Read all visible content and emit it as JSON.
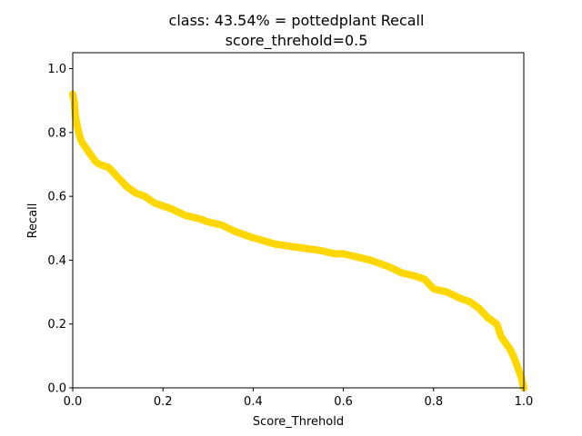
{
  "chart_data": {
    "type": "line",
    "title": "class: 43.54% = pottedplant Recall",
    "subtitle": "score_threhold=0.5",
    "xlabel": "Score_Threhold",
    "ylabel": "Recall",
    "xlim": [
      0.0,
      1.0
    ],
    "ylim": [
      0.0,
      1.05
    ],
    "x_ticks": [
      "0.0",
      "0.2",
      "0.4",
      "0.6",
      "0.8",
      "1.0"
    ],
    "y_ticks": [
      "0.0",
      "0.2",
      "0.4",
      "0.6",
      "0.8",
      "1.0"
    ],
    "grid": false,
    "legend": "none",
    "series": [
      {
        "color": "#ffd700",
        "x": [
          0.0,
          0.003,
          0.006,
          0.01,
          0.015,
          0.02,
          0.03,
          0.04,
          0.05,
          0.06,
          0.08,
          0.1,
          0.12,
          0.14,
          0.16,
          0.18,
          0.2,
          0.22,
          0.25,
          0.28,
          0.3,
          0.33,
          0.36,
          0.4,
          0.45,
          0.5,
          0.55,
          0.58,
          0.6,
          0.63,
          0.66,
          0.7,
          0.73,
          0.76,
          0.78,
          0.8,
          0.83,
          0.86,
          0.88,
          0.9,
          0.92,
          0.94,
          0.95,
          0.96,
          0.97,
          0.98,
          0.985,
          0.99,
          0.995,
          1.0
        ],
        "y": [
          0.92,
          0.9,
          0.85,
          0.82,
          0.79,
          0.77,
          0.75,
          0.73,
          0.71,
          0.7,
          0.69,
          0.66,
          0.63,
          0.61,
          0.6,
          0.58,
          0.57,
          0.56,
          0.54,
          0.53,
          0.52,
          0.51,
          0.49,
          0.47,
          0.45,
          0.44,
          0.43,
          0.42,
          0.42,
          0.41,
          0.4,
          0.38,
          0.36,
          0.35,
          0.34,
          0.31,
          0.3,
          0.28,
          0.27,
          0.25,
          0.22,
          0.2,
          0.16,
          0.14,
          0.12,
          0.09,
          0.07,
          0.05,
          0.03,
          0.0
        ]
      }
    ]
  }
}
